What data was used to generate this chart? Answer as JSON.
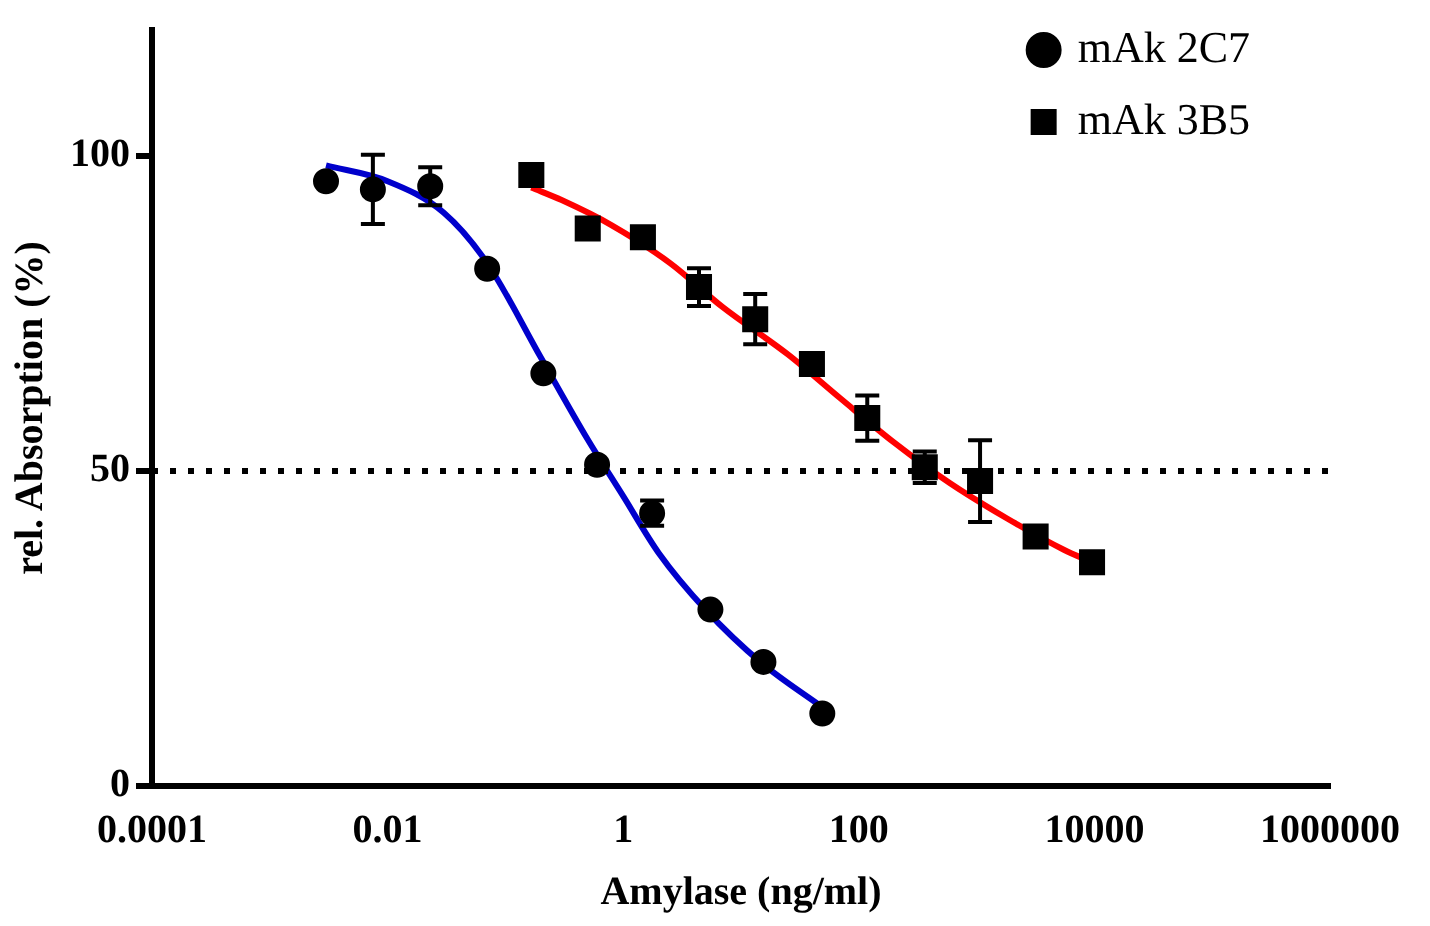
{
  "chart_data": {
    "type": "scatter",
    "xlabel": "Amylase (ng/ml)",
    "ylabel": "rel. Absorption (%)",
    "log": "x",
    "xlim": [
      0.0001,
      1000000
    ],
    "xticks": [
      0.0001,
      0.01,
      1,
      100,
      10000,
      1000000
    ],
    "ylim": [
      0,
      120
    ],
    "yticks": [
      0,
      50,
      100
    ],
    "grid": false,
    "legend": "top right",
    "ref_lines": [
      {
        "axis": "y",
        "value": 50,
        "color": "#000000",
        "line_style": "dotted"
      }
    ],
    "series": [
      {
        "name": "mAk 2C7",
        "marker": "circle",
        "color": "#000000",
        "x": [
          0.003,
          0.0075,
          0.023,
          0.07,
          0.21,
          0.6,
          1.76,
          5.5,
          15.5,
          49
        ],
        "values": [
          96,
          94.7,
          95.2,
          82.1,
          65.5,
          51,
          43.3,
          28,
          19.7,
          11.5
        ],
        "errors": [
          null,
          5.5,
          3,
          null,
          null,
          null,
          2,
          null,
          null,
          null
        ]
      },
      {
        "type": "line",
        "color": "#0000cc",
        "x": [
          0.003,
          0.01,
          0.03,
          0.07,
          0.2,
          0.5,
          1,
          2,
          5,
          15,
          49
        ],
        "values": [
          98.5,
          96,
          91,
          83,
          68,
          55,
          46,
          37,
          28,
          19.5,
          12.5
        ]
      },
      {
        "name": "mAk 3B5",
        "marker": "square",
        "color": "#000000",
        "x": [
          0.166,
          0.5,
          1.47,
          4.4,
          13.2,
          40,
          118,
          363,
          1070,
          3170,
          9550
        ],
        "values": [
          97,
          88.5,
          87.1,
          79.2,
          74.1,
          67,
          58.4,
          50.6,
          48.4,
          39.6,
          35.5
        ],
        "errors": [
          null,
          null,
          null,
          3,
          4,
          null,
          3.6,
          2.5,
          6.5,
          null,
          null
        ]
      },
      {
        "type": "line",
        "color": "#ff0000",
        "x": [
          0.166,
          0.3,
          0.8,
          2.5,
          7,
          25,
          70,
          200,
          600,
          1800,
          5500,
          9550
        ],
        "values": [
          95,
          93,
          89,
          83,
          76,
          68.5,
          61.5,
          54.5,
          48,
          42.5,
          37.5,
          35.5
        ]
      }
    ]
  }
}
